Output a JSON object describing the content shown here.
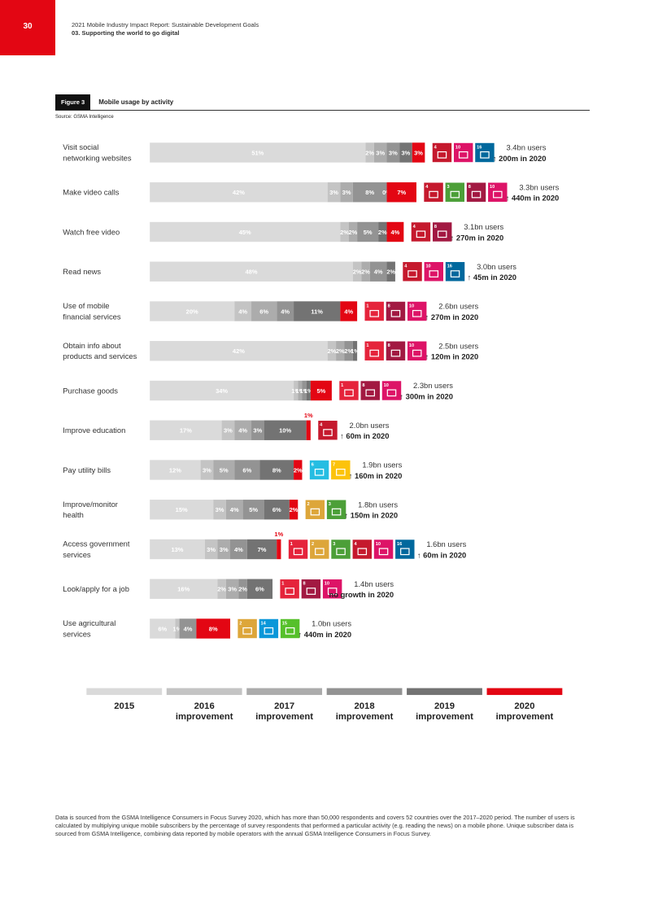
{
  "page_number": "30",
  "header": {
    "line1": "2021 Mobile Industry Impact Report: Sustainable Development Goals",
    "line2": "03. Supporting the world to go digital"
  },
  "figure": {
    "label": "Figure 3",
    "title": "Mobile usage by activity",
    "source": "Source: GSMA Intelligence"
  },
  "footnote": "Data is sourced from the GSMA Intelligence Consumers in Focus Survey 2020, which has more than 50,000 respondents and covers 52 countries over the 2017–2020 period. The number of users is calculated by multiplying unique mobile subscribers by the percentage of survey respondents that performed a particular activity (e.g. reading the news) on a mobile phone. Unique subscriber data is sourced from GSMA Intelligence, combining data reported by mobile operators with the annual GSMA Intelligence Consumers in Focus Survey.",
  "chart_data": {
    "type": "bar",
    "orientation": "horizontal-stacked",
    "unit": "%",
    "legend": {
      "placement": "bottom",
      "items": [
        {
          "label_line1": "2015",
          "label_line2": "",
          "color": "#dadada"
        },
        {
          "label_line1": "2016",
          "label_line2": "improvement",
          "color": "#c4c4c4"
        },
        {
          "label_line1": "2017",
          "label_line2": "improvement",
          "color": "#acacac"
        },
        {
          "label_line1": "2018",
          "label_line2": "improvement",
          "color": "#939393"
        },
        {
          "label_line1": "2019",
          "label_line2": "improvement",
          "color": "#737373"
        },
        {
          "label_line1": "2020",
          "label_line2": "improvement",
          "color": "#e30613"
        }
      ]
    },
    "sdg_colors": {
      "1": "#e5243b",
      "2": "#dda63a",
      "3": "#4c9f38",
      "4": "#c5192d",
      "6": "#26bde2",
      "7": "#fcc30b",
      "8": "#a21942",
      "10": "#dd1367",
      "14": "#0a97d9",
      "15": "#56c02b",
      "16": "#00689d"
    },
    "series_names": [
      "2015",
      "2016",
      "2017",
      "2018",
      "2019",
      "2020"
    ],
    "categories": [
      {
        "label": [
          "Visit social",
          "networking websites"
        ],
        "values": [
          51,
          2,
          3,
          3,
          3,
          3
        ],
        "sdgs": [
          4,
          10,
          16
        ],
        "users": "3.4bn users",
        "growth": "↑ 200m in 2020"
      },
      {
        "label": [
          "Make video calls"
        ],
        "values": [
          42,
          3,
          3,
          8,
          0,
          7
        ],
        "sdgs": [
          4,
          3,
          8,
          10
        ],
        "users": "3.3bn users",
        "growth": "↑ 440m in 2020"
      },
      {
        "label": [
          "Watch free video"
        ],
        "values": [
          45,
          2,
          2,
          5,
          2,
          4
        ],
        "sdgs": [
          4,
          8
        ],
        "users": "3.1bn users",
        "growth": "↑ 270m in 2020"
      },
      {
        "label": [
          "Read news"
        ],
        "values": [
          48,
          2,
          2,
          4,
          2,
          0
        ],
        "sdgs": [
          4,
          10,
          16
        ],
        "users": "3.0bn users",
        "growth": "↑ 45m in 2020"
      },
      {
        "label": [
          "Use of mobile",
          "financial services"
        ],
        "values": [
          20,
          4,
          6,
          4,
          11,
          4
        ],
        "sdgs": [
          1,
          8,
          10
        ],
        "users": "2.6bn users",
        "growth": "↑ 270m in 2020"
      },
      {
        "label": [
          "Obtain info about",
          "products and services"
        ],
        "values": [
          42,
          2,
          2,
          2,
          1,
          0
        ],
        "sdgs": [
          1,
          8,
          10
        ],
        "users": "2.5bn users",
        "growth": "↑ 120m in 2020"
      },
      {
        "label": [
          "Purchase goods"
        ],
        "values": [
          34,
          1,
          1,
          1,
          1,
          5
        ],
        "sdgs": [
          1,
          8,
          10
        ],
        "users": "2.3bn users",
        "growth": "↑ 300m in 2020"
      },
      {
        "label": [
          "Improve education"
        ],
        "values": [
          17,
          3,
          4,
          3,
          10,
          1
        ],
        "sdgs": [
          4
        ],
        "users": "2.0bn users",
        "growth": "↑ 60m in 2020"
      },
      {
        "label": [
          "Pay utility bills"
        ],
        "values": [
          12,
          3,
          5,
          6,
          8,
          2
        ],
        "sdgs": [
          6,
          7
        ],
        "users": "1.9bn users",
        "growth": "↑ 160m in 2020"
      },
      {
        "label": [
          "Improve/monitor",
          "health"
        ],
        "values": [
          15,
          3,
          4,
          5,
          6,
          2
        ],
        "sdgs": [
          2,
          3
        ],
        "users": "1.8bn users",
        "growth": "↑ 150m in 2020"
      },
      {
        "label": [
          "Access government",
          "services"
        ],
        "values": [
          13,
          3,
          3,
          4,
          7,
          1
        ],
        "sdgs": [
          1,
          2,
          3,
          4,
          10,
          16
        ],
        "users": "1.6bn users",
        "growth": "↑ 60m in 2020"
      },
      {
        "label": [
          "Look/apply for a job"
        ],
        "values": [
          16,
          2,
          3,
          2,
          6,
          0
        ],
        "sdgs": [
          1,
          8,
          10
        ],
        "users": "1.4bn users",
        "growth": "no growth in 2020"
      },
      {
        "label": [
          "Use agricultural",
          "services"
        ],
        "values": [
          6,
          1,
          4,
          8
        ],
        "segment_series": [
          0,
          1,
          3,
          5
        ],
        "sdgs": [
          2,
          14,
          15
        ],
        "users": "1.0bn users",
        "growth": "↑ 440m in 2020"
      }
    ]
  }
}
